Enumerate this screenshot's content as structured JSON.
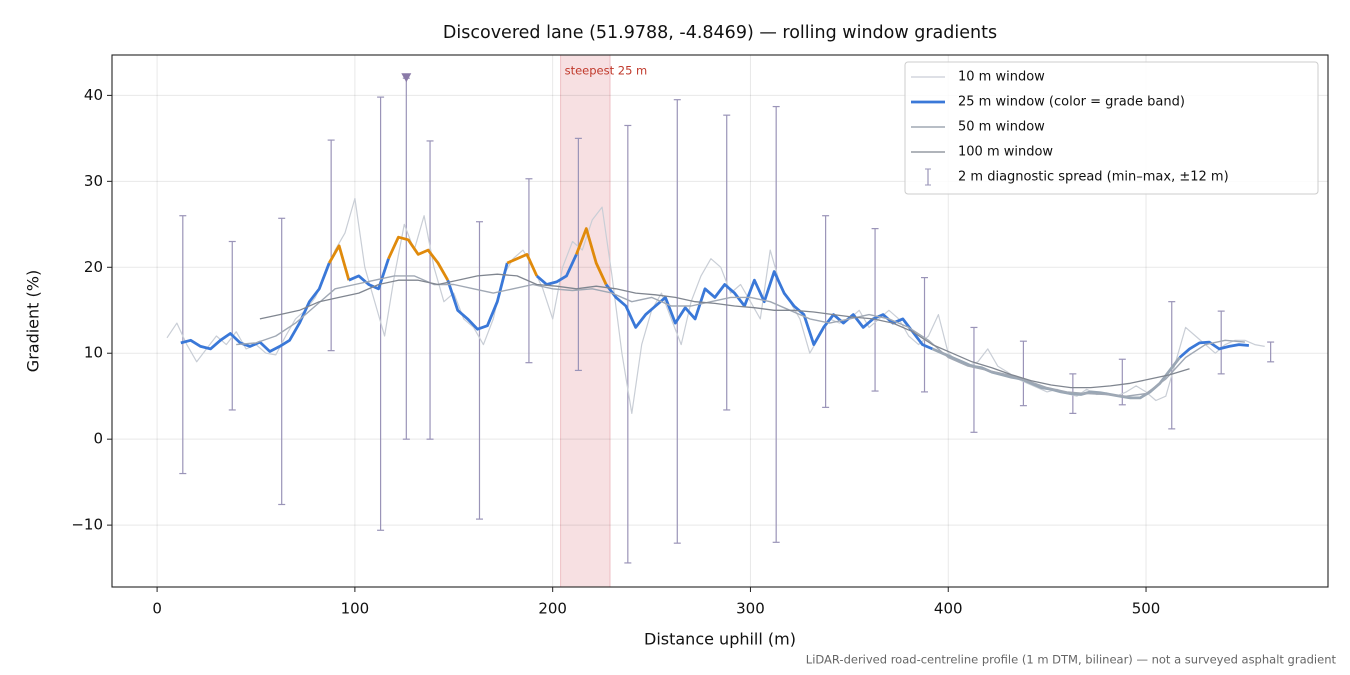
{
  "chart_data": {
    "type": "line",
    "title": "Discovered lane (51.9788, -4.8469) — rolling window gradients",
    "xlabel": "Distance uphill (m)",
    "ylabel": "Gradient (%)",
    "footnote": "LiDAR-derived road-centreline profile (1 m DTM, bilinear) — not a surveyed asphalt gradient",
    "xlim": [
      -22.8,
      592
    ],
    "ylim": [
      -17.2,
      44.7
    ],
    "xticks": [
      0,
      100,
      200,
      300,
      400,
      500
    ],
    "yticks": [
      {
        "value": -10,
        "label": "−10"
      },
      0,
      10,
      20,
      30,
      40
    ],
    "grid": true,
    "legend": "upper right",
    "highlight": {
      "x": [
        204,
        229
      ],
      "label": "steepest 25 m",
      "color": "#e6a0a8"
    },
    "peak_marker": {
      "x": 126,
      "y": 42,
      "color": "#8a7aa8"
    },
    "series": [
      {
        "name": "10 m window",
        "color": "#c9ced6",
        "width": 1.2,
        "x": [
          5,
          10,
          15,
          20,
          25,
          30,
          35,
          40,
          45,
          50,
          55,
          60,
          65,
          70,
          75,
          80,
          85,
          90,
          95,
          100,
          105,
          110,
          115,
          120,
          125,
          130,
          135,
          140,
          145,
          150,
          155,
          160,
          165,
          170,
          175,
          180,
          185,
          190,
          195,
          200,
          205,
          210,
          215,
          220,
          225,
          230,
          235,
          240,
          245,
          250,
          255,
          260,
          265,
          270,
          275,
          280,
          285,
          290,
          295,
          300,
          305,
          310,
          315,
          320,
          325,
          330,
          335,
          340,
          345,
          350,
          355,
          360,
          365,
          370,
          375,
          380,
          385,
          390,
          395,
          400,
          405,
          410,
          415,
          420,
          425,
          430,
          435,
          440,
          445,
          450,
          455,
          460,
          465,
          470,
          475,
          480,
          485,
          490,
          495,
          500,
          505,
          510,
          515,
          520,
          525,
          530,
          535,
          540,
          545,
          550,
          555,
          560
        ],
        "values": [
          11.8,
          13.5,
          11,
          9,
          10.5,
          12,
          11,
          12.5,
          10.5,
          11,
          10,
          9.8,
          12,
          14,
          15,
          16.5,
          19,
          22,
          24,
          28,
          20,
          16,
          12,
          19,
          25,
          22,
          26,
          20,
          16,
          17,
          14,
          13,
          11,
          14,
          19,
          21,
          22,
          20,
          17.5,
          14,
          20,
          23,
          22,
          25.5,
          27,
          19,
          10,
          3,
          11,
          15,
          17,
          14,
          11,
          16,
          19,
          21,
          20,
          17,
          18,
          16,
          14,
          22,
          18,
          16,
          14,
          10,
          12,
          14,
          13.5,
          14,
          15,
          13,
          14,
          15,
          14,
          12,
          11,
          12,
          14.5,
          10,
          9,
          8.5,
          9,
          10.5,
          8.5,
          7.8,
          7,
          6.5,
          6,
          5.5,
          5.8,
          5.3,
          5,
          5.8,
          5.2,
          5.4,
          5,
          5.5,
          6.2,
          5.5,
          4.5,
          5,
          9,
          13,
          12,
          11,
          10,
          11,
          11.5,
          11.5,
          11,
          10.8
        ]
      },
      {
        "name": "25 m window (color = grade band)",
        "color": "#3a78d8",
        "width": 2.8,
        "x": [
          12,
          17,
          22,
          27,
          32,
          37,
          42,
          47,
          52,
          57,
          62,
          67,
          72,
          77,
          82,
          87,
          92,
          97,
          102,
          107,
          112,
          117,
          122,
          127,
          132,
          137,
          142,
          147,
          152,
          157,
          162,
          167,
          172,
          177,
          182,
          187,
          192,
          197,
          202,
          207,
          212,
          217,
          222,
          227,
          232,
          237,
          242,
          247,
          252,
          257,
          262,
          267,
          272,
          277,
          282,
          287,
          292,
          297,
          302,
          307,
          312,
          317,
          322,
          327,
          332,
          337,
          342,
          347,
          352,
          357,
          362,
          367,
          372,
          377,
          382,
          387,
          392,
          397,
          402,
          407,
          412,
          417,
          422,
          427,
          432,
          437,
          442,
          447,
          452,
          457,
          462,
          467,
          472,
          477,
          482,
          487,
          492,
          497,
          502,
          507,
          512,
          517,
          522,
          527,
          532,
          537,
          542,
          547,
          552
        ],
        "values": [
          11.2,
          11.5,
          10.8,
          10.5,
          11.5,
          12.3,
          11.2,
          10.8,
          11.3,
          10.2,
          10.8,
          11.5,
          13.5,
          16,
          17.5,
          20.5,
          22.5,
          18.5,
          19,
          18,
          17.5,
          21,
          23.5,
          23.2,
          21.5,
          22,
          20.5,
          18.5,
          15,
          14,
          12.8,
          13.2,
          16,
          20.5,
          21,
          21.5,
          19,
          18,
          18.3,
          19,
          21.5,
          24.5,
          20.5,
          18,
          16.5,
          15.5,
          13,
          14.5,
          15.5,
          16.5,
          13.5,
          15.3,
          14,
          17.5,
          16.5,
          18,
          17,
          15.5,
          18.5,
          16,
          19.5,
          17,
          15.5,
          14.5,
          11,
          13,
          14.5,
          13.5,
          14.5,
          13,
          14,
          14.5,
          13.5,
          14,
          12.5,
          11,
          10.5,
          10,
          9.5,
          9,
          8.5,
          8.3,
          7.8,
          7.5,
          7.2,
          7,
          6.5,
          6,
          5.8,
          5.5,
          5.3,
          5.2,
          5.5,
          5.4,
          5.2,
          5,
          4.8,
          4.8,
          5.5,
          6.5,
          8,
          9.5,
          10.5,
          11.2,
          11.3,
          10.5,
          10.8,
          11,
          10.9
        ],
        "colors": [
          "#3a78d8",
          "#3a78d8",
          "#3a78d8",
          "#3a78d8",
          "#3a78d8",
          "#3a78d8",
          "#3a78d8",
          "#3a78d8",
          "#3a78d8",
          "#3a78d8",
          "#3a78d8",
          "#3a78d8",
          "#3a78d8",
          "#3a78d8",
          "#3a78d8",
          "#e08a0b",
          "#e08a0b",
          "#3a78d8",
          "#3a78d8",
          "#3a78d8",
          "#3a78d8",
          "#e08a0b",
          "#e08a0b",
          "#e08a0b",
          "#e08a0b",
          "#e08a0b",
          "#e08a0b",
          "#3a78d8",
          "#3a78d8",
          "#3a78d8",
          "#3a78d8",
          "#3a78d8",
          "#3a78d8",
          "#e08a0b",
          "#e08a0b",
          "#e08a0b",
          "#3a78d8",
          "#3a78d8",
          "#3a78d8",
          "#3a78d8",
          "#e08a0b",
          "#e08a0b",
          "#e08a0b",
          "#3a78d8",
          "#3a78d8",
          "#3a78d8",
          "#3a78d8",
          "#3a78d8",
          "#3a78d8",
          "#3a78d8",
          "#3a78d8",
          "#3a78d8",
          "#3a78d8",
          "#3a78d8",
          "#3a78d8",
          "#3a78d8",
          "#3a78d8",
          "#3a78d8",
          "#3a78d8",
          "#3a78d8",
          "#3a78d8",
          "#3a78d8",
          "#3a78d8",
          "#3a78d8",
          "#3a78d8",
          "#3a78d8",
          "#3a78d8",
          "#3a78d8",
          "#3a78d8",
          "#3a78d8",
          "#3a78d8",
          "#3a78d8",
          "#3a78d8",
          "#3a78d8",
          "#3a78d8",
          "#3a78d8",
          "#9aa7b5",
          "#9aa7b5",
          "#9aa7b5",
          "#9aa7b5",
          "#9aa7b5",
          "#9aa7b5",
          "#9aa7b5",
          "#9aa7b5",
          "#9aa7b5",
          "#9aa7b5",
          "#9aa7b5",
          "#9aa7b5",
          "#9aa7b5",
          "#9aa7b5",
          "#9aa7b5",
          "#9aa7b5",
          "#9aa7b5",
          "#9aa7b5",
          "#9aa7b5",
          "#9aa7b5",
          "#9aa7b5",
          "#9aa7b5",
          "#9aa7b5",
          "#9aa7b5",
          "#9aa7b5",
          "#3a78d8",
          "#3a78d8",
          "#3a78d8",
          "#3a78d8",
          "#3a78d8",
          "#3a78d8",
          "#3a78d8",
          "#3a78d8"
        ]
      },
      {
        "name": "50 m window",
        "color": "#a0a8b4",
        "width": 1.4,
        "x": [
          40,
          50,
          60,
          70,
          80,
          90,
          100,
          110,
          120,
          130,
          140,
          150,
          160,
          170,
          180,
          190,
          200,
          210,
          220,
          230,
          240,
          250,
          260,
          270,
          280,
          290,
          300,
          310,
          320,
          330,
          340,
          350,
          360,
          370,
          380,
          390,
          400,
          410,
          420,
          430,
          440,
          450,
          460,
          470,
          480,
          490,
          500,
          510,
          520,
          530,
          540,
          550
        ],
        "values": [
          11,
          11.2,
          12,
          13.5,
          15.5,
          17.5,
          18,
          18.5,
          19,
          19,
          18,
          18,
          17.5,
          17,
          17.5,
          18,
          17.5,
          17.3,
          17.5,
          17,
          16,
          16.5,
          15.5,
          15.5,
          16,
          16.5,
          16.5,
          16,
          15,
          14,
          13.5,
          14,
          14.5,
          14,
          13,
          11.5,
          9.5,
          8.5,
          8,
          7.5,
          6.8,
          6,
          5.5,
          5.3,
          5.2,
          5,
          5.3,
          7,
          9.5,
          11,
          11.5,
          11.3
        ]
      },
      {
        "name": "100 m window",
        "color": "#808690",
        "width": 1.3,
        "x": [
          52,
          62,
          72,
          82,
          92,
          102,
          112,
          122,
          132,
          142,
          152,
          162,
          172,
          182,
          192,
          202,
          212,
          222,
          232,
          242,
          252,
          262,
          272,
          282,
          292,
          302,
          312,
          322,
          332,
          342,
          352,
          362,
          372,
          382,
          392,
          402,
          412,
          422,
          432,
          442,
          452,
          462,
          472,
          482,
          492,
          502,
          512,
          522
        ],
        "values": [
          14,
          14.5,
          15,
          16,
          16.5,
          17,
          18,
          18.5,
          18.5,
          18,
          18.5,
          19,
          19.2,
          19,
          18,
          17.8,
          17.5,
          17.8,
          17.5,
          17,
          16.8,
          16.5,
          16,
          15.8,
          15.5,
          15.3,
          15,
          15,
          14.8,
          14.5,
          14.2,
          14,
          13.5,
          12.5,
          11,
          10,
          9,
          8.3,
          7.5,
          6.8,
          6.3,
          6,
          6,
          6.2,
          6.5,
          7,
          7.5,
          8.2
        ]
      }
    ],
    "errorbars": {
      "name": "2 m diagnostic spread (min–max, ±12 m)",
      "color": "#9a94b8",
      "x": [
        13,
        38,
        63,
        88,
        113,
        126,
        138,
        163,
        188,
        213,
        238,
        263,
        288,
        313,
        338,
        363,
        388,
        413,
        438,
        463,
        488,
        513,
        538,
        563
      ],
      "low": [
        -4,
        3.4,
        -7.6,
        10.3,
        -10.6,
        0,
        0,
        -9.3,
        8.9,
        8,
        -14.4,
        -12.1,
        3.4,
        -12,
        3.7,
        5.6,
        5.5,
        0.8,
        3.9,
        3,
        4,
        1.2,
        7.6,
        9
      ],
      "high": [
        26,
        23,
        25.7,
        34.8,
        39.8,
        42,
        34.7,
        25.3,
        30.3,
        35,
        36.5,
        39.5,
        37.7,
        38.7,
        26,
        24.5,
        18.8,
        13,
        11.4,
        7.6,
        9.3,
        16,
        14.9,
        11.3
      ]
    }
  }
}
